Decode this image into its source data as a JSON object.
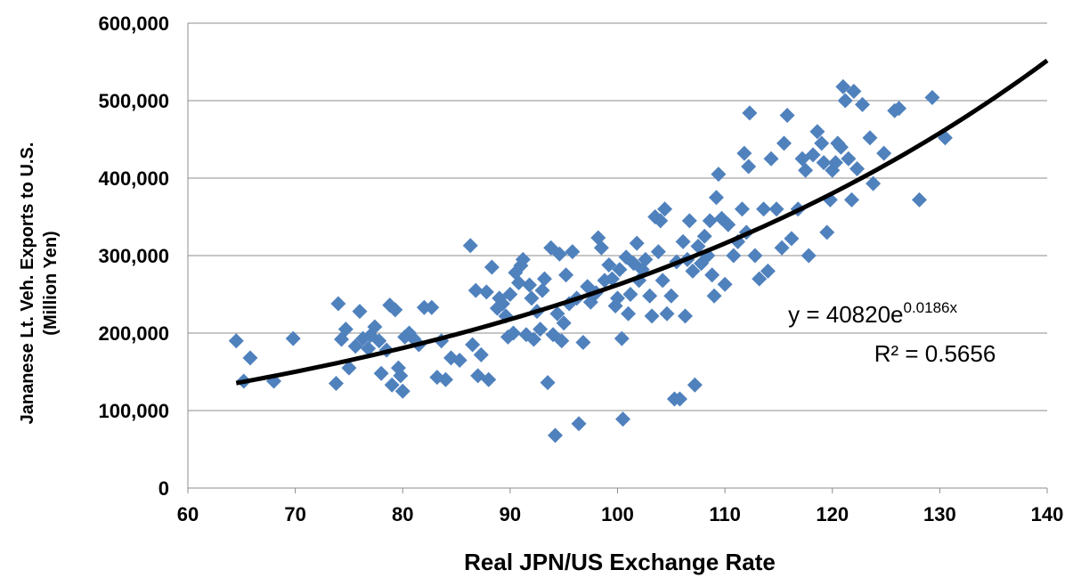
{
  "chart_data": {
    "type": "scatter",
    "title": "",
    "xlabel": "Real JPN/US Exchange Rate",
    "ylabel": [
      "Jananese Lt. Veh. Exports to U.S.",
      "(Million Yen)"
    ],
    "xlim": [
      60,
      140
    ],
    "ylim": [
      0,
      600000
    ],
    "x_ticks": [
      "60",
      "70",
      "80",
      "90",
      "100",
      "110",
      "120",
      "130",
      "140"
    ],
    "y_ticks": [
      "0",
      "100,000",
      "200,000",
      "300,000",
      "400,000",
      "500,000",
      "600,000"
    ],
    "grid": "horizontal",
    "marker_color": "#4F81BD",
    "trendline_color": "#000000",
    "trendline": {
      "type": "exponential",
      "a": 40820,
      "b": 0.0186,
      "x_range": [
        64.5,
        140
      ],
      "equation_base": "y = 40820e",
      "equation_exponent": "0.0186x",
      "r_squared_label": "R² = 0.5656"
    },
    "points": [
      [
        64.5,
        190000
      ],
      [
        65.2,
        138000
      ],
      [
        65.8,
        168000
      ],
      [
        68,
        138000
      ],
      [
        69.8,
        193000
      ],
      [
        73.8,
        135000
      ],
      [
        74,
        238000
      ],
      [
        74.3,
        192000
      ],
      [
        74.7,
        205000
      ],
      [
        75,
        155000
      ],
      [
        75.6,
        183000
      ],
      [
        76,
        228000
      ],
      [
        76.3,
        193000
      ],
      [
        76.8,
        180000
      ],
      [
        77,
        197000
      ],
      [
        77.4,
        208000
      ],
      [
        77.8,
        190000
      ],
      [
        78,
        148000
      ],
      [
        78.5,
        178000
      ],
      [
        78.8,
        236000
      ],
      [
        79,
        133000
      ],
      [
        79.3,
        230000
      ],
      [
        79.6,
        155000
      ],
      [
        79.8,
        145000
      ],
      [
        80,
        125000
      ],
      [
        80.2,
        195000
      ],
      [
        80.6,
        200000
      ],
      [
        81,
        193000
      ],
      [
        81.5,
        185000
      ],
      [
        82,
        233000
      ],
      [
        82.7,
        233000
      ],
      [
        83.2,
        143000
      ],
      [
        83.6,
        190000
      ],
      [
        84,
        140000
      ],
      [
        84.5,
        168000
      ],
      [
        85.3,
        165000
      ],
      [
        86.3,
        313000
      ],
      [
        86.5,
        185000
      ],
      [
        86.8,
        255000
      ],
      [
        87,
        145000
      ],
      [
        87.3,
        172000
      ],
      [
        87.8,
        253000
      ],
      [
        88,
        140000
      ],
      [
        88.3,
        285000
      ],
      [
        88.8,
        232000
      ],
      [
        89,
        245000
      ],
      [
        89.3,
        238000
      ],
      [
        89.6,
        222000
      ],
      [
        89.8,
        195000
      ],
      [
        90,
        250000
      ],
      [
        90.3,
        200000
      ],
      [
        90.5,
        278000
      ],
      [
        90.8,
        265000
      ],
      [
        91,
        287000
      ],
      [
        91.2,
        295000
      ],
      [
        91.5,
        198000
      ],
      [
        91.8,
        262000
      ],
      [
        92,
        245000
      ],
      [
        92.2,
        192000
      ],
      [
        92.5,
        228000
      ],
      [
        92.8,
        205000
      ],
      [
        93,
        255000
      ],
      [
        93.2,
        270000
      ],
      [
        93.5,
        136000
      ],
      [
        93.8,
        310000
      ],
      [
        94,
        198000
      ],
      [
        94.2,
        68000
      ],
      [
        94.4,
        225000
      ],
      [
        94.6,
        302000
      ],
      [
        94.8,
        190000
      ],
      [
        95,
        213000
      ],
      [
        95.2,
        275000
      ],
      [
        95.5,
        238000
      ],
      [
        95.8,
        305000
      ],
      [
        96.2,
        245000
      ],
      [
        96.4,
        83000
      ],
      [
        96.8,
        188000
      ],
      [
        97.2,
        260000
      ],
      [
        97.5,
        240000
      ],
      [
        98,
        252000
      ],
      [
        98.2,
        323000
      ],
      [
        98.5,
        310000
      ],
      [
        98.8,
        268000
      ],
      [
        99.2,
        288000
      ],
      [
        99.5,
        270000
      ],
      [
        99.8,
        235000
      ],
      [
        100,
        245000
      ],
      [
        100.2,
        282000
      ],
      [
        100.4,
        193000
      ],
      [
        100.5,
        89000
      ],
      [
        100.8,
        298000
      ],
      [
        101,
        225000
      ],
      [
        101.2,
        250000
      ],
      [
        101.5,
        290000
      ],
      [
        101.8,
        316000
      ],
      [
        102,
        268000
      ],
      [
        102.3,
        282000
      ],
      [
        102.6,
        295000
      ],
      [
        103,
        248000
      ],
      [
        103.2,
        222000
      ],
      [
        103.5,
        350000
      ],
      [
        103.8,
        305000
      ],
      [
        104,
        345000
      ],
      [
        104.2,
        268000
      ],
      [
        104.4,
        360000
      ],
      [
        104.6,
        225000
      ],
      [
        105,
        248000
      ],
      [
        105.3,
        115000
      ],
      [
        105.5,
        292000
      ],
      [
        105.8,
        115000
      ],
      [
        106.1,
        318000
      ],
      [
        106.3,
        222000
      ],
      [
        106.5,
        295000
      ],
      [
        106.7,
        345000
      ],
      [
        107,
        280000
      ],
      [
        107.2,
        133000
      ],
      [
        107.5,
        312000
      ],
      [
        107.8,
        290000
      ],
      [
        108.1,
        325000
      ],
      [
        108.4,
        300000
      ],
      [
        108.6,
        345000
      ],
      [
        108.8,
        275000
      ],
      [
        109,
        248000
      ],
      [
        109.2,
        375000
      ],
      [
        109.4,
        405000
      ],
      [
        109.7,
        348000
      ],
      [
        110,
        263000
      ],
      [
        110.3,
        340000
      ],
      [
        110.8,
        300000
      ],
      [
        111.2,
        318000
      ],
      [
        111.6,
        360000
      ],
      [
        111.8,
        432000
      ],
      [
        112,
        330000
      ],
      [
        112.2,
        415000
      ],
      [
        112.3,
        484000
      ],
      [
        112.8,
        300000
      ],
      [
        113.2,
        270000
      ],
      [
        113.6,
        360000
      ],
      [
        114,
        280000
      ],
      [
        114.3,
        425000
      ],
      [
        114.8,
        360000
      ],
      [
        115.3,
        310000
      ],
      [
        115.5,
        445000
      ],
      [
        115.8,
        481000
      ],
      [
        116.2,
        322000
      ],
      [
        116.8,
        360000
      ],
      [
        117.2,
        425000
      ],
      [
        117.5,
        410000
      ],
      [
        117.8,
        300000
      ],
      [
        118.2,
        430000
      ],
      [
        118.6,
        460000
      ],
      [
        119,
        445000
      ],
      [
        119.2,
        420000
      ],
      [
        119.5,
        330000
      ],
      [
        119.8,
        372000
      ],
      [
        120,
        410000
      ],
      [
        120.3,
        420000
      ],
      [
        120.5,
        445000
      ],
      [
        120.8,
        440000
      ],
      [
        121,
        518000
      ],
      [
        121.2,
        500000
      ],
      [
        121.5,
        425000
      ],
      [
        121.8,
        372000
      ],
      [
        122,
        512000
      ],
      [
        122.3,
        412000
      ],
      [
        122.8,
        495000
      ],
      [
        123.5,
        452000
      ],
      [
        123.8,
        393000
      ],
      [
        124.8,
        432000
      ],
      [
        125.8,
        487000
      ],
      [
        126.2,
        490000
      ],
      [
        128.1,
        372000
      ],
      [
        129.3,
        504000
      ],
      [
        130.5,
        452000
      ]
    ]
  }
}
